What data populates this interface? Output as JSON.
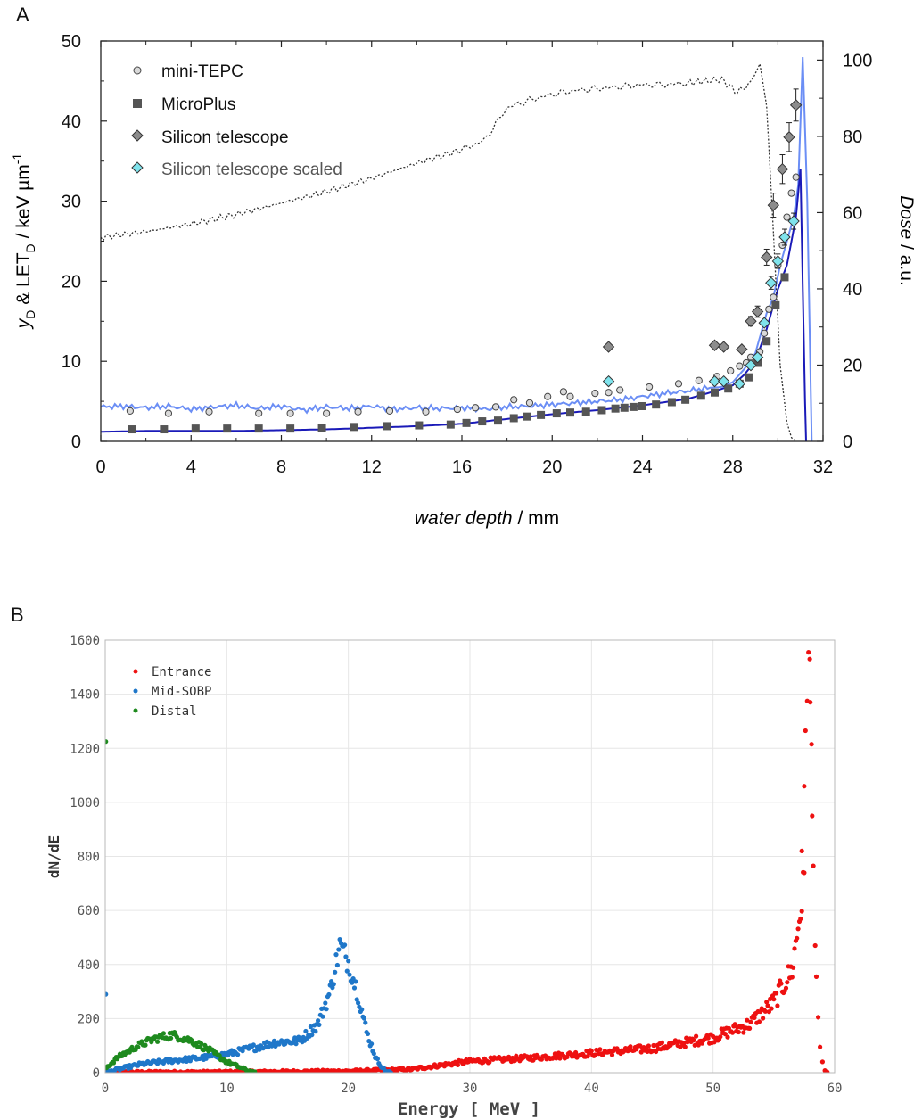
{
  "panel_a_label": "A",
  "panel_b_label": "B",
  "chart_data": [
    {
      "type": "scatter",
      "panel": "A",
      "title": "",
      "xlabel": "water depth / mm",
      "ylabel": "yD & LETD / keV µm-1",
      "ylabel_parts": {
        "y": "y",
        "sub1": "D",
        "amp": " & LET",
        "sub2": "D",
        "unit": " / keV µm",
        "sup": "-1"
      },
      "y2label": "Dose / a.u.",
      "xlim": [
        0,
        32
      ],
      "ylim": [
        0,
        50
      ],
      "y2lim": [
        0,
        105
      ],
      "xticks": [
        "0",
        "4",
        "8",
        "12",
        "16",
        "20",
        "24",
        "28",
        "32"
      ],
      "yticks": [
        "0",
        "10",
        "20",
        "30",
        "40",
        "50"
      ],
      "y2ticks": [
        "0",
        "20",
        "40",
        "60",
        "80",
        "100"
      ],
      "legend_position": "top-left",
      "series": [
        {
          "name": "mini-TEPC",
          "marker": "circle",
          "color": "#d9d9d9",
          "x": [
            1.3,
            3.0,
            4.8,
            7.0,
            8.4,
            10.0,
            11.4,
            12.8,
            14.4,
            15.8,
            16.6,
            17.5,
            18.3,
            19.0,
            19.8,
            20.5,
            20.8,
            21.9,
            22.5,
            23.0,
            24.3,
            25.6,
            26.5,
            27.3,
            27.9,
            28.3,
            28.6,
            28.8,
            29.2,
            29.4,
            29.6,
            29.8,
            30.0,
            30.2,
            30.4,
            30.6,
            30.8
          ],
          "y": [
            3.8,
            3.5,
            3.7,
            3.5,
            3.5,
            3.5,
            3.7,
            3.8,
            3.7,
            4.0,
            4.2,
            4.3,
            5.2,
            4.8,
            5.6,
            6.2,
            5.6,
            6.0,
            6.1,
            6.4,
            6.8,
            7.2,
            7.6,
            8.1,
            8.8,
            9.4,
            9.8,
            10.5,
            11.2,
            13.5,
            16.5,
            18.0,
            22.0,
            24.5,
            28.0,
            31.0,
            33.0
          ]
        },
        {
          "name": "MicroPlus",
          "marker": "square",
          "color": "#555555",
          "x": [
            1.4,
            2.8,
            4.2,
            5.6,
            7.0,
            8.4,
            9.8,
            11.2,
            12.7,
            14.1,
            15.5,
            16.2,
            16.9,
            17.6,
            18.3,
            18.9,
            19.5,
            20.2,
            20.8,
            21.5,
            22.2,
            22.8,
            23.2,
            23.6,
            24.0,
            24.6,
            25.3,
            25.9,
            26.6,
            27.2,
            27.8,
            28.3,
            28.7,
            29.1,
            29.5,
            29.9,
            30.3
          ],
          "y": [
            1.5,
            1.5,
            1.6,
            1.6,
            1.6,
            1.6,
            1.7,
            1.8,
            1.9,
            2.0,
            2.1,
            2.3,
            2.5,
            2.6,
            2.9,
            3.1,
            3.3,
            3.5,
            3.6,
            3.7,
            3.9,
            4.1,
            4.2,
            4.3,
            4.4,
            4.6,
            4.9,
            5.2,
            5.7,
            6.1,
            6.6,
            7.2,
            8.0,
            9.8,
            12.5,
            17.0,
            20.5
          ]
        },
        {
          "name": "Silicon telescope",
          "marker": "diamond",
          "color": "#8c8c8c",
          "x": [
            22.5,
            27.2,
            27.6,
            28.4,
            28.8,
            29.1,
            29.5,
            29.8,
            30.2,
            30.5,
            30.8
          ],
          "y": [
            11.8,
            12.0,
            11.8,
            11.5,
            15.0,
            16.2,
            23.0,
            29.5,
            34.0,
            38.0,
            42.0
          ],
          "err": [
            0.4,
            0.4,
            0.4,
            0.5,
            0.6,
            0.7,
            1.0,
            1.5,
            1.8,
            1.8,
            2.0
          ]
        },
        {
          "name": "Silicon telescope scaled",
          "marker": "diamond",
          "color": "#7fe3ec",
          "x": [
            22.5,
            27.2,
            27.6,
            28.3,
            28.8,
            29.1,
            29.4,
            29.7,
            30.0,
            30.3,
            30.7
          ],
          "y": [
            7.5,
            7.5,
            7.5,
            7.2,
            9.5,
            10.5,
            14.8,
            19.8,
            22.5,
            25.5,
            27.5
          ],
          "err": [
            0.2,
            0.2,
            0.2,
            0.2,
            0.2,
            0.2,
            0.3,
            0.8,
            0.9,
            1.0,
            1.0
          ]
        }
      ],
      "lines": [
        {
          "name": "light blue calculated line",
          "color": "#6b8ef5",
          "x": [
            0,
            1.0,
            2.0,
            3.0,
            4.0,
            5.0,
            6.0,
            7.0,
            8.0,
            9.0,
            10.0,
            11.0,
            12.0,
            13.0,
            14.0,
            15.0,
            16.0,
            17.0,
            18.0,
            19.0,
            20.0,
            21.0,
            22.0,
            23.0,
            24.0,
            25.0,
            26.0,
            27.0,
            27.5,
            28.0,
            28.5,
            29.0,
            29.5,
            29.8,
            30.1,
            30.4,
            30.7,
            30.9,
            31.1,
            31.3,
            31.5
          ],
          "y": [
            4.3,
            4.4,
            4.2,
            4.4,
            4.0,
            4.3,
            4.5,
            4.1,
            4.4,
            3.9,
            4.3,
            4.1,
            4.4,
            4.0,
            4.2,
            4.1,
            4.2,
            4.0,
            4.3,
            4.4,
            4.6,
            4.8,
            5.0,
            5.2,
            5.6,
            6.0,
            6.3,
            6.7,
            6.8,
            7.4,
            9.0,
            11.0,
            16.0,
            18.0,
            22.0,
            25.0,
            28.0,
            32.0,
            48.0,
            30.0,
            0.0
          ]
        },
        {
          "name": "dark blue calculated line",
          "color": "#1a1ab8",
          "x": [
            0,
            2.0,
            4.0,
            6.0,
            8.0,
            10.0,
            12.0,
            14.0,
            16.0,
            18.0,
            20.0,
            22.0,
            24.0,
            26.0,
            27.0,
            28.0,
            28.5,
            29.0,
            29.5,
            30.0,
            30.4,
            30.8,
            31.0,
            31.2,
            31.25
          ],
          "y": [
            1.2,
            1.3,
            1.3,
            1.3,
            1.4,
            1.5,
            1.7,
            1.9,
            2.2,
            2.8,
            3.4,
            3.9,
            4.5,
            5.3,
            6.1,
            7.0,
            8.3,
            10.0,
            14.0,
            19.0,
            22.0,
            28.0,
            34.0,
            5.0,
            0.0
          ]
        },
        {
          "name": "Dose (dotted)",
          "color": "#333333",
          "axis": "right",
          "x": [
            0,
            2,
            4,
            6,
            8,
            10,
            12,
            14,
            16,
            17,
            18,
            19,
            20,
            21,
            22,
            23,
            24,
            25,
            26,
            26.8,
            27.5,
            28.2,
            28.8,
            29.2,
            29.5,
            29.8,
            30.1,
            30.4,
            30.6,
            30.8
          ],
          "y": [
            53.5,
            55.0,
            57.0,
            59.5,
            62.5,
            65.5,
            69.0,
            73.0,
            76.5,
            79.0,
            87.5,
            89.5,
            91.0,
            92.0,
            92.5,
            93.0,
            93.5,
            93.5,
            94.0,
            94.5,
            95.0,
            91.5,
            94.0,
            99.0,
            88.0,
            55.0,
            20.0,
            5.0,
            1.0,
            0.0
          ]
        }
      ]
    },
    {
      "type": "scatter",
      "panel": "B",
      "title": "",
      "xlabel": "Energy [ MeV ]",
      "ylabel": "dN/dE",
      "xlim": [
        0,
        60
      ],
      "ylim": [
        0,
        1600
      ],
      "xticks": [
        "0",
        "10",
        "20",
        "30",
        "40",
        "50",
        "60"
      ],
      "yticks": [
        "0",
        "200",
        "400",
        "600",
        "800",
        "1000",
        "1200",
        "1400",
        "1600"
      ],
      "grid": true,
      "legend_position": "top-left",
      "series": [
        {
          "name": "Entrance",
          "color": "#ee1111",
          "curve": [
            [
              0,
              2
            ],
            [
              10,
              3
            ],
            [
              20,
              6
            ],
            [
              25,
              12
            ],
            [
              30,
              42
            ],
            [
              35,
              55
            ],
            [
              40,
              72
            ],
            [
              45,
              90
            ],
            [
              50,
              130
            ],
            [
              53,
              180
            ],
            [
              55,
              260
            ],
            [
              56.5,
              380
            ],
            [
              57.5,
              700
            ]
          ],
          "peak": [
            [
              57.3,
              820
            ],
            [
              57.5,
              1060
            ],
            [
              57.6,
              1265
            ],
            [
              57.75,
              1375
            ],
            [
              57.85,
              1555
            ],
            [
              57.95,
              1530
            ],
            [
              58.0,
              1370
            ],
            [
              58.1,
              1215
            ],
            [
              58.15,
              950
            ],
            [
              58.25,
              765
            ],
            [
              58.4,
              470
            ],
            [
              58.5,
              355
            ],
            [
              58.65,
              205
            ],
            [
              58.8,
              95
            ],
            [
              59.0,
              40
            ],
            [
              59.2,
              8
            ],
            [
              59.4,
              2
            ]
          ],
          "spread": 0.12
        },
        {
          "name": "Mid-SOBP",
          "color": "#1f77c9",
          "curve": [
            [
              0,
              0
            ],
            [
              1,
              12
            ],
            [
              3,
              32
            ],
            [
              5,
              42
            ],
            [
              8,
              55
            ],
            [
              10,
              68
            ],
            [
              12,
              90
            ],
            [
              14,
              112
            ],
            [
              16,
              118
            ],
            [
              17.5,
              180
            ],
            [
              18.5,
              300
            ],
            [
              19.3,
              470
            ],
            [
              20.0,
              410
            ],
            [
              20.8,
              290
            ],
            [
              21.5,
              150
            ],
            [
              22.3,
              50
            ],
            [
              23.0,
              8
            ],
            [
              23.5,
              0
            ]
          ],
          "extra_points": [
            [
              0.05,
              290
            ]
          ],
          "spread": 0.1
        },
        {
          "name": "Distal",
          "color": "#1e8a1e",
          "curve": [
            [
              0,
              15
            ],
            [
              1,
              55
            ],
            [
              2.5,
              95
            ],
            [
              4,
              125
            ],
            [
              5.5,
              140
            ],
            [
              7,
              120
            ],
            [
              8.5,
              85
            ],
            [
              10,
              40
            ],
            [
              11.5,
              12
            ],
            [
              12.3,
              0
            ]
          ],
          "extra_points": [
            [
              0.05,
              1225
            ]
          ],
          "spread": 0.08
        }
      ]
    }
  ]
}
